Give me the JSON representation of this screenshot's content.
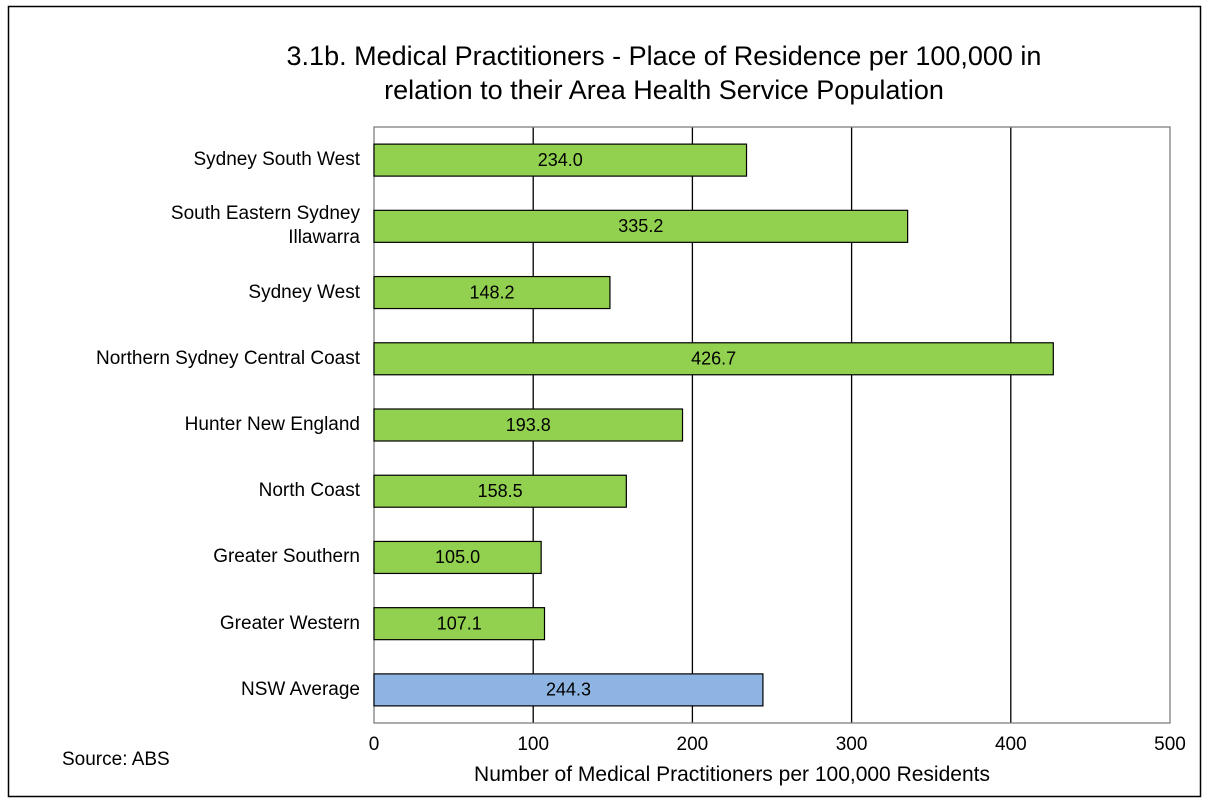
{
  "chart_data": {
    "type": "bar",
    "orientation": "horizontal",
    "title": "3.1b. Medical Practitioners - Place of Residence per 100,000 in\nrelation to their Area Health Service Population",
    "categories": [
      "Sydney South West",
      "South Eastern Sydney\nIllawarra",
      "Sydney West",
      "Northern Sydney Central Coast",
      "Hunter New England",
      "North Coast",
      "Greater Southern",
      "Greater Western",
      "NSW Average"
    ],
    "values": [
      234.0,
      335.2,
      148.2,
      426.7,
      193.8,
      158.5,
      105.0,
      107.1,
      244.3
    ],
    "value_labels": [
      "234.0",
      "335.2",
      "148.2",
      "426.7",
      "193.8",
      "158.5",
      "105.0",
      "107.1",
      "244.3"
    ],
    "colors": [
      "#92d050",
      "#92d050",
      "#92d050",
      "#92d050",
      "#92d050",
      "#92d050",
      "#92d050",
      "#92d050",
      "#8db4e2"
    ],
    "xlim": [
      0,
      500
    ],
    "xticks": [
      0,
      100,
      200,
      300,
      400,
      500
    ],
    "grid": true,
    "xlabel": "Number of Medical Practitioners per 100,000 Residents",
    "source": "Source: ABS"
  }
}
